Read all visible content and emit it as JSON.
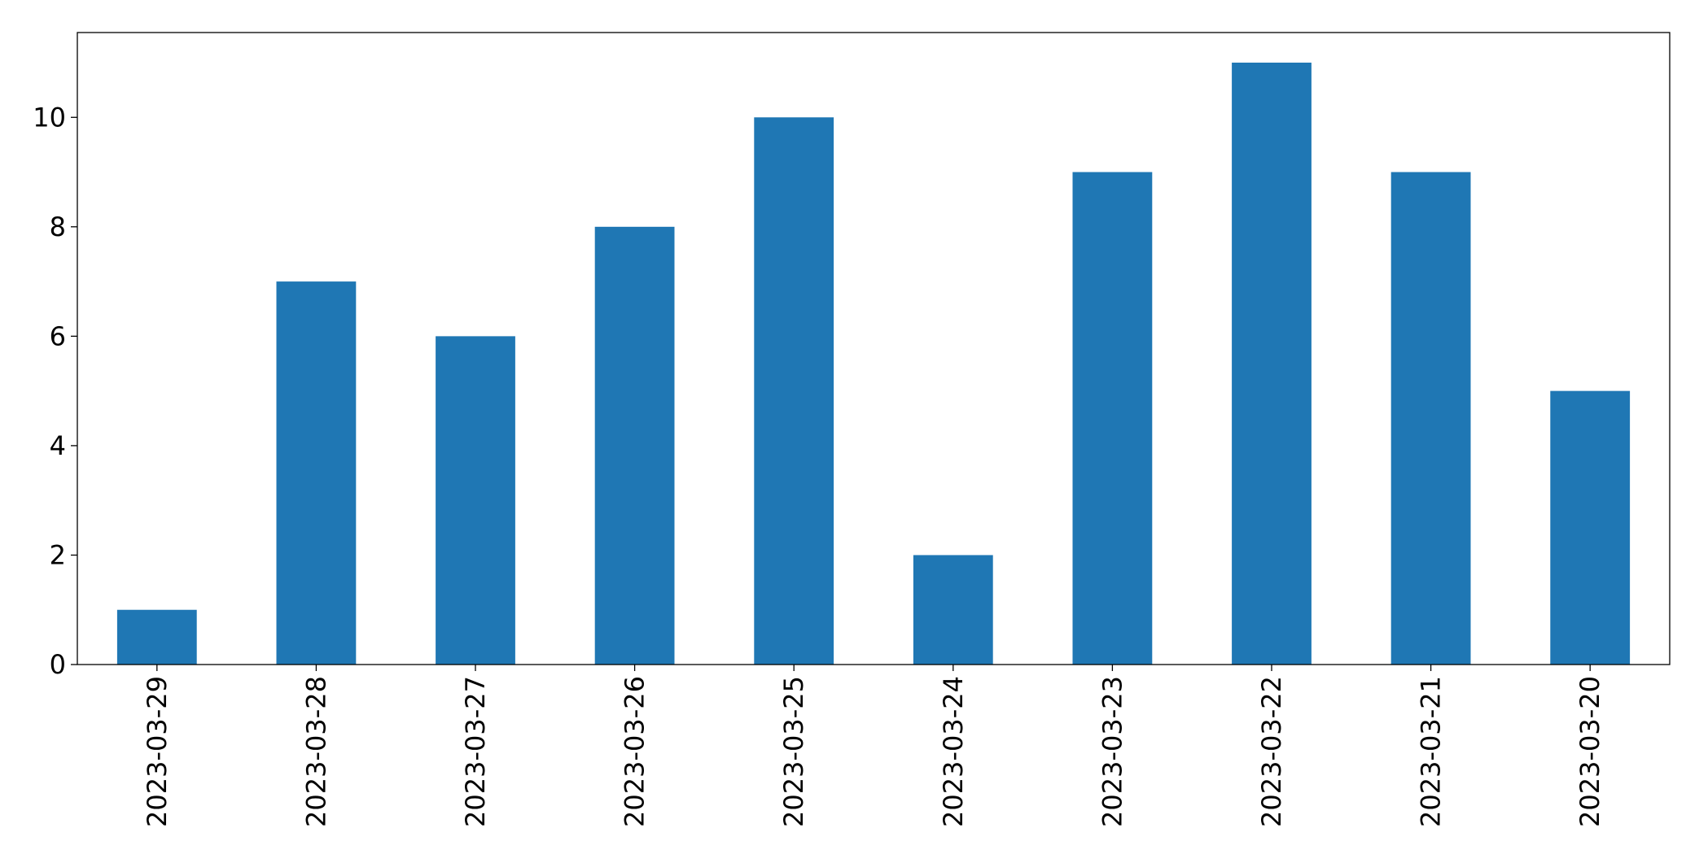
{
  "chart_data": {
    "type": "bar",
    "categories": [
      "2023-03-29",
      "2023-03-28",
      "2023-03-27",
      "2023-03-26",
      "2023-03-25",
      "2023-03-24",
      "2023-03-23",
      "2023-03-22",
      "2023-03-21",
      "2023-03-20"
    ],
    "values": [
      1,
      7,
      6,
      8,
      10,
      2,
      9,
      11,
      9,
      5
    ],
    "color": "#1f77b4",
    "ylim": [
      0,
      11.55
    ],
    "yticks": [
      0,
      2,
      4,
      6,
      8,
      10
    ],
    "grid": false
  }
}
